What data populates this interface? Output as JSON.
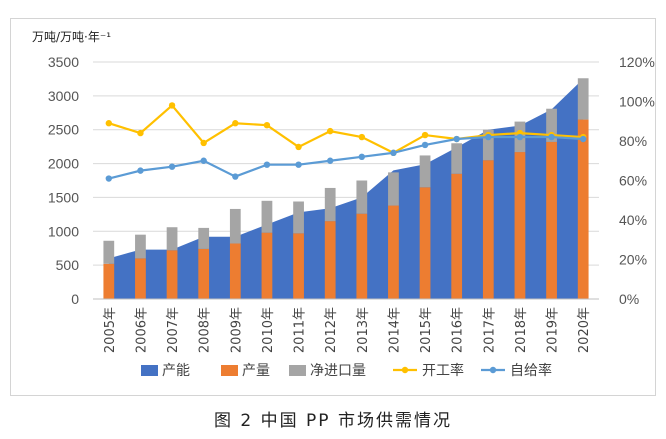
{
  "caption": "图 2  中国 PP 市场供需情况",
  "chart_data": {
    "type": "bar",
    "unit_label": "万吨/万吨·年⁻¹",
    "categories": [
      "2005年",
      "2006年",
      "2007年",
      "2008年",
      "2009年",
      "2010年",
      "2011年",
      "2012年",
      "2013年",
      "2014年",
      "2015年",
      "2016年",
      "2017年",
      "2018年",
      "2019年",
      "2020年"
    ],
    "y_left": {
      "ylim": [
        0,
        3500
      ],
      "ticks": [
        0,
        500,
        1000,
        1500,
        2000,
        2500,
        3000,
        3500
      ]
    },
    "y_right": {
      "ylim": [
        0,
        120
      ],
      "ticks": [
        "0%",
        "20%",
        "40%",
        "60%",
        "80%",
        "100%",
        "120%"
      ]
    },
    "grid": true,
    "legend_position": "bottom",
    "series": [
      {
        "name": "产能",
        "type": "area",
        "color": "#4472C4",
        "axis": "left",
        "values": [
          600,
          730,
          730,
          920,
          920,
          1100,
          1280,
          1340,
          1500,
          1900,
          1990,
          2240,
          2500,
          2560,
          2800,
          3250
        ]
      },
      {
        "name": "产量",
        "type": "bar",
        "color": "#ED7D31",
        "axis": "left",
        "values": [
          520,
          600,
          720,
          740,
          820,
          980,
          970,
          1150,
          1260,
          1380,
          1650,
          1850,
          2050,
          2170,
          2320,
          2650
        ]
      },
      {
        "name": "净进口量",
        "type": "bar-stacked",
        "color": "#A5A5A5",
        "axis": "left",
        "values": [
          340,
          350,
          340,
          310,
          510,
          470,
          470,
          490,
          490,
          490,
          470,
          450,
          450,
          450,
          490,
          610
        ]
      },
      {
        "name": "开工率",
        "type": "line",
        "color": "#FFC000",
        "axis": "right",
        "values": [
          89,
          84,
          98,
          79,
          89,
          88,
          77,
          85,
          82,
          74,
          83,
          81,
          83,
          84,
          83,
          82
        ]
      },
      {
        "name": "自给率",
        "type": "line",
        "color": "#5B9BD5",
        "axis": "right",
        "values": [
          61,
          65,
          67,
          70,
          62,
          68,
          68,
          70,
          72,
          74,
          78,
          81,
          82,
          82,
          82,
          81
        ]
      }
    ]
  }
}
